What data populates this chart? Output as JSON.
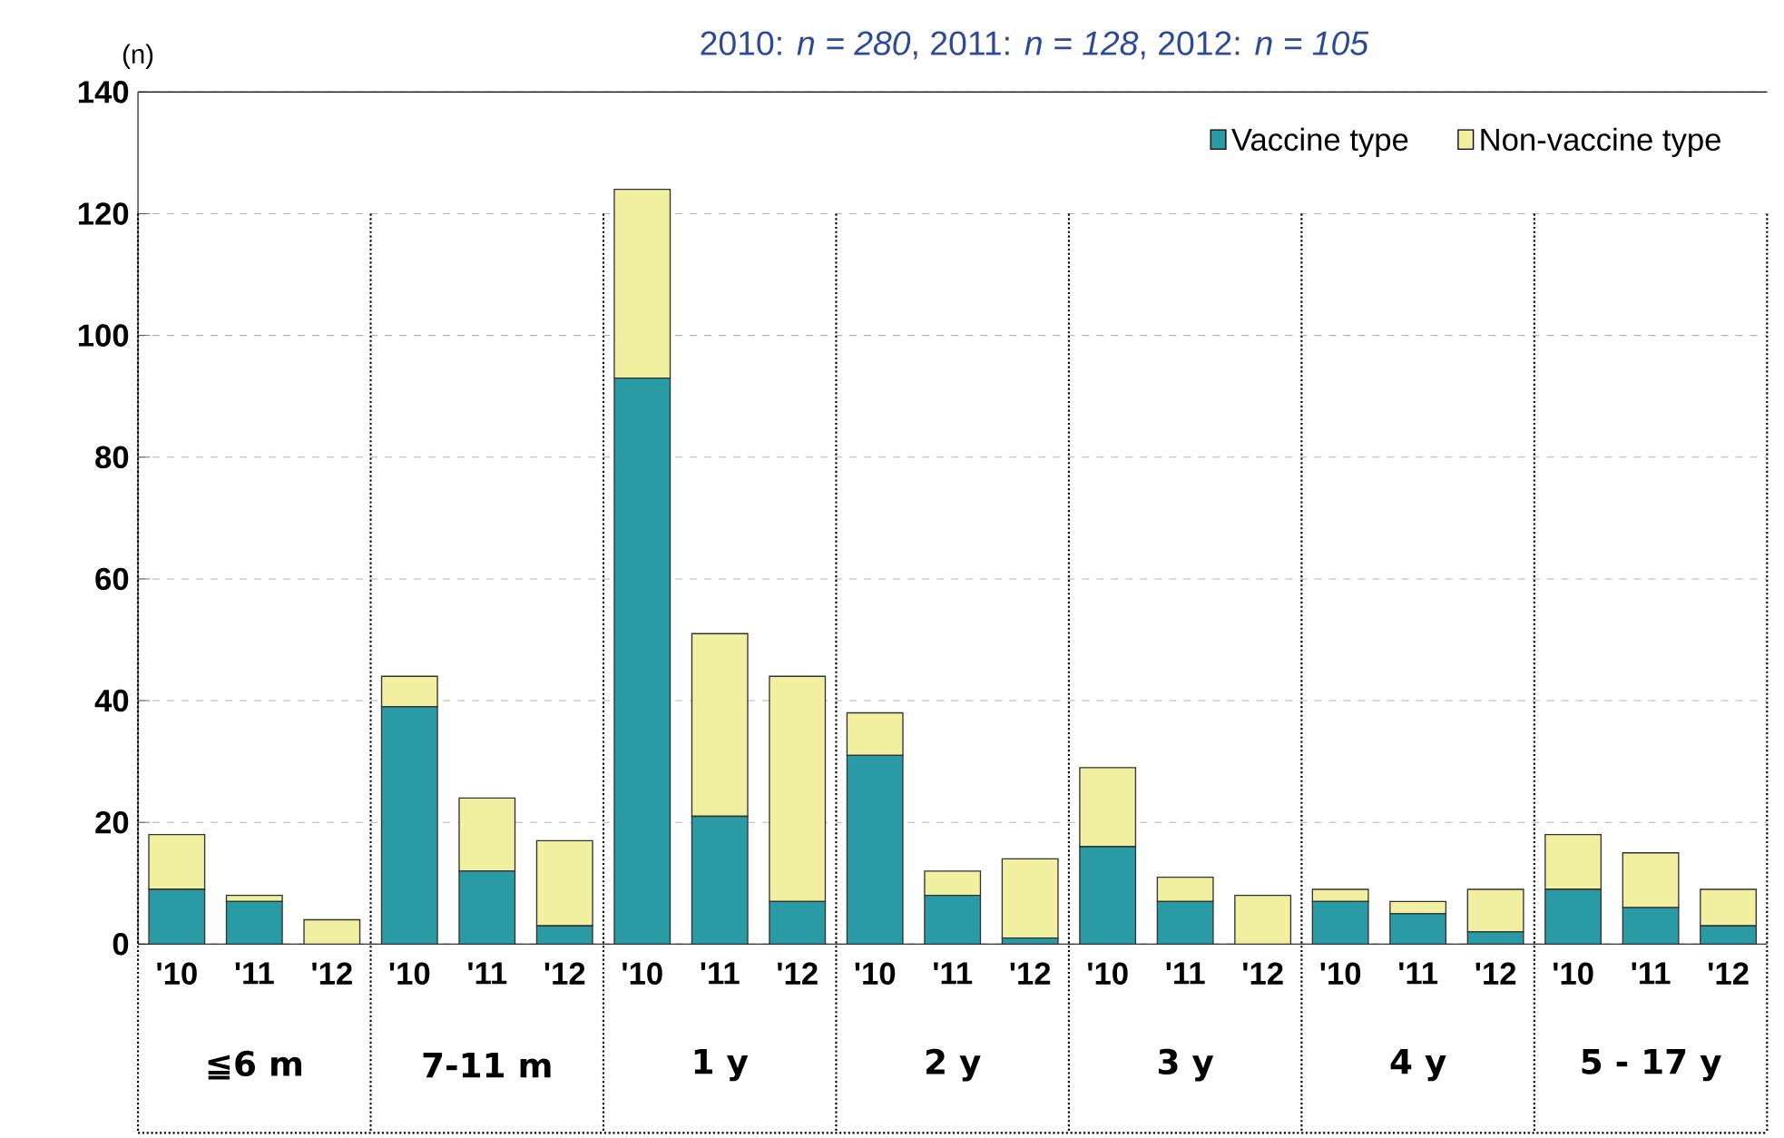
{
  "chart_data": {
    "type": "bar",
    "stacked": true,
    "title": "2010: *n = 280*,  2011: *n = 128*,  2012: *n = 105*",
    "ylabel": "(n)",
    "categories": [
      "'10",
      "'11",
      "'12",
      "'10",
      "'11",
      "'12",
      "'10",
      "'11",
      "'12",
      "'10",
      "'11",
      "'12",
      "'10",
      "'11",
      "'12",
      "'10",
      "'11",
      "'12",
      "'10",
      "'11",
      "'12"
    ],
    "series": [
      {
        "name": "Vaccine type",
        "color": "#2a9aa5",
        "values": [
          9,
          7,
          0,
          39,
          12,
          3,
          93,
          21,
          7,
          31,
          8,
          1,
          16,
          7,
          0,
          7,
          5,
          2,
          9,
          6,
          3
        ]
      },
      {
        "name": "Non-vaccine type",
        "color": "#f0f0a0",
        "values": [
          9,
          1,
          4,
          5,
          12,
          14,
          31,
          30,
          37,
          7,
          4,
          13,
          13,
          4,
          8,
          2,
          2,
          7,
          9,
          9,
          6
        ]
      }
    ],
    "annotations": [
      "≦6 m",
      "7-11 m",
      "1 y",
      "2 y",
      "3 y",
      "4 y",
      "5 - 17 y"
    ],
    "ylim": [
      0,
      140
    ],
    "yticks": [
      0,
      20,
      40,
      60,
      80,
      100,
      120,
      140
    ],
    "grid": "y",
    "legend": "top right"
  }
}
